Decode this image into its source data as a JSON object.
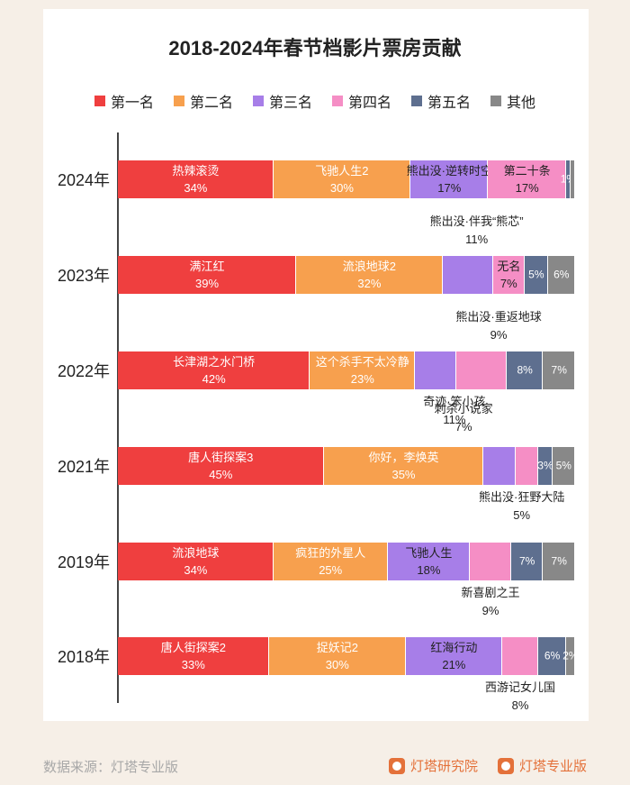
{
  "chart_data": {
    "type": "bar",
    "orientation": "horizontal-stacked-100",
    "title": "2018-2024年春节档影片票房贡献",
    "legend_position": "top",
    "series_names": [
      "第一名",
      "第二名",
      "第三名",
      "第四名",
      "第五名",
      "其他"
    ],
    "colors": [
      "#ef3f3f",
      "#f7a04e",
      "#a77ee8",
      "#f58ec5",
      "#5e6f8f",
      "#888888"
    ],
    "categories": [
      "2024年",
      "2023年",
      "2022年",
      "2021年",
      "2019年",
      "2018年"
    ],
    "values": [
      [
        34,
        30,
        17,
        17,
        1,
        1
      ],
      [
        39,
        32,
        11,
        7,
        5,
        6
      ],
      [
        42,
        23,
        9,
        11,
        8,
        7
      ],
      [
        45,
        35,
        7,
        5,
        3,
        5
      ],
      [
        34,
        25,
        18,
        9,
        7,
        7
      ],
      [
        33,
        30,
        21,
        8,
        6,
        2
      ]
    ],
    "labels": [
      [
        "热辣滚烫 34%",
        "飞驰人生2 30%",
        "熊出没·逆转时空 17%",
        "第二十条 17%",
        "1%",
        ""
      ],
      [
        "满江红 39%",
        "流浪地球2 32%",
        "熊出没·伴我“熊芯” 11%",
        "无名 7%",
        "5%",
        "6%"
      ],
      [
        "长津湖之水门桥 42%",
        "这个杀手不太冷静 23%",
        "熊出没·重返地球 9%",
        "奇迹·笨小孩 11%",
        "8%",
        "7%"
      ],
      [
        "唐人街探案3 45%",
        "你好，李焕英 35%",
        "刺杀小说家 7%",
        "熊出没·狂野大陆 5%",
        "3%",
        "5%"
      ],
      [
        "流浪地球 34%",
        "疯狂的外星人 25%",
        "飞驰人生 18%",
        "新喜剧之王 9%",
        "7%",
        "7%"
      ],
      [
        "唐人街探案2 33%",
        "捉妖记2 30%",
        "红海行动 21%",
        "西游记女儿国 8%",
        "6%",
        "2%"
      ]
    ]
  },
  "footer": {
    "source": "数据来源：灯塔专业版",
    "brand1": "灯塔研究院",
    "brand2": "灯塔专业版"
  }
}
